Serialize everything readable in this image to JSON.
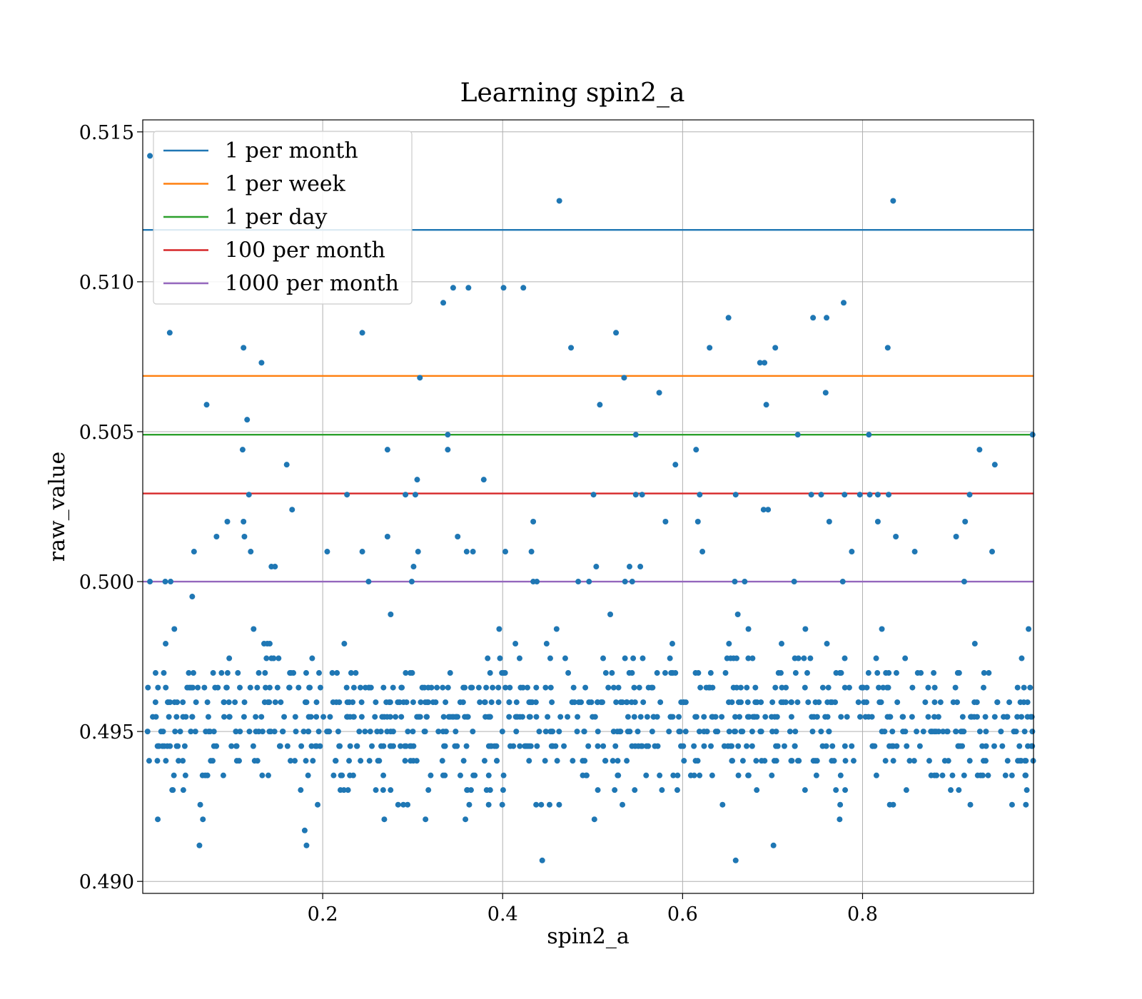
{
  "chart_data": {
    "type": "scatter",
    "title": "Learning spin2_a",
    "xlabel": "spin2_a",
    "ylabel": "raw_value",
    "xlim": [
      0.0,
      0.99
    ],
    "ylim": [
      0.4896,
      0.5154
    ],
    "x_ticks": [
      0.2,
      0.4,
      0.6,
      0.8
    ],
    "x_tick_labels": [
      "0.2",
      "0.4",
      "0.6",
      "0.8"
    ],
    "y_ticks": [
      0.49,
      0.495,
      0.5,
      0.505,
      0.51,
      0.515
    ],
    "y_tick_labels": [
      "0.490",
      "0.495",
      "0.500",
      "0.505",
      "0.510",
      "0.515"
    ],
    "grid": true,
    "legend_position": "top-left",
    "scatter_color": "#1f77b4",
    "reference_lines": [
      {
        "name": "1 per month",
        "y": 0.51173,
        "color": "#1f77b4"
      },
      {
        "name": "1 per week",
        "y": 0.50686,
        "color": "#ff7f0e"
      },
      {
        "name": "1 per day",
        "y": 0.5049,
        "color": "#2ca02c"
      },
      {
        "name": "100 per month",
        "y": 0.50294,
        "color": "#d62728"
      },
      {
        "name": "1000 per month",
        "y": 0.5,
        "color": "#9467bd"
      }
    ],
    "scatter_points": [
      [
        0.008,
        0.5142
      ],
      [
        0.03,
        0.5083
      ],
      [
        0.112,
        0.5078
      ],
      [
        0.132,
        0.5073
      ],
      [
        0.071,
        0.5059
      ],
      [
        0.116,
        0.5054
      ],
      [
        0.111,
        0.5044
      ],
      [
        0.16,
        0.5039
      ],
      [
        0.166,
        0.5024
      ],
      [
        0.082,
        0.5015
      ],
      [
        0.094,
        0.502
      ],
      [
        0.112,
        0.502
      ],
      [
        0.113,
        0.5015
      ],
      [
        0.118,
        0.5029
      ],
      [
        0.12,
        0.501
      ],
      [
        0.143,
        0.5005
      ],
      [
        0.147,
        0.5005
      ],
      [
        0.057,
        0.501
      ],
      [
        0.055,
        0.4995
      ],
      [
        0.008,
        0.5
      ],
      [
        0.025,
        0.5
      ],
      [
        0.031,
        0.5
      ],
      [
        0.244,
        0.5083
      ],
      [
        0.272,
        0.5044
      ],
      [
        0.227,
        0.5029
      ],
      [
        0.244,
        0.501
      ],
      [
        0.272,
        0.5015
      ],
      [
        0.251,
        0.5
      ],
      [
        0.205,
        0.501
      ],
      [
        0.292,
        0.5029
      ],
      [
        0.303,
        0.5029
      ],
      [
        0.305,
        0.5034
      ],
      [
        0.306,
        0.501
      ],
      [
        0.301,
        0.5005
      ],
      [
        0.299,
        0.5
      ],
      [
        0.308,
        0.5068
      ],
      [
        0.334,
        0.5093
      ],
      [
        0.345,
        0.5098
      ],
      [
        0.362,
        0.5098
      ],
      [
        0.401,
        0.5098
      ],
      [
        0.423,
        0.5098
      ],
      [
        0.339,
        0.5049
      ],
      [
        0.339,
        0.5044
      ],
      [
        0.379,
        0.5034
      ],
      [
        0.35,
        0.5015
      ],
      [
        0.36,
        0.501
      ],
      [
        0.367,
        0.501
      ],
      [
        0.403,
        0.501
      ],
      [
        0.432,
        0.501
      ],
      [
        0.434,
        0.502
      ],
      [
        0.434,
        0.5
      ],
      [
        0.438,
        0.5
      ],
      [
        0.463,
        0.5127
      ],
      [
        0.476,
        0.5078
      ],
      [
        0.526,
        0.5083
      ],
      [
        0.535,
        0.5068
      ],
      [
        0.508,
        0.5059
      ],
      [
        0.548,
        0.5049
      ],
      [
        0.501,
        0.5029
      ],
      [
        0.548,
        0.5029
      ],
      [
        0.555,
        0.5029
      ],
      [
        0.504,
        0.5005
      ],
      [
        0.541,
        0.5005
      ],
      [
        0.553,
        0.5005
      ],
      [
        0.484,
        0.5
      ],
      [
        0.496,
        0.5
      ],
      [
        0.536,
        0.5
      ],
      [
        0.544,
        0.5
      ],
      [
        0.574,
        0.5063
      ],
      [
        0.592,
        0.5039
      ],
      [
        0.581,
        0.502
      ],
      [
        0.615,
        0.5044
      ],
      [
        0.619,
        0.5029
      ],
      [
        0.617,
        0.502
      ],
      [
        0.622,
        0.501
      ],
      [
        0.63,
        0.5078
      ],
      [
        0.651,
        0.5088
      ],
      [
        0.659,
        0.5029
      ],
      [
        0.658,
        0.5
      ],
      [
        0.669,
        0.5
      ],
      [
        0.686,
        0.5073
      ],
      [
        0.691,
        0.5073
      ],
      [
        0.693,
        0.5059
      ],
      [
        0.703,
        0.5078
      ],
      [
        0.69,
        0.5024
      ],
      [
        0.695,
        0.5024
      ],
      [
        0.728,
        0.5049
      ],
      [
        0.724,
        0.5
      ],
      [
        0.745,
        0.5088
      ],
      [
        0.76,
        0.5088
      ],
      [
        0.779,
        0.5093
      ],
      [
        0.759,
        0.5063
      ],
      [
        0.743,
        0.5029
      ],
      [
        0.754,
        0.5029
      ],
      [
        0.763,
        0.502
      ],
      [
        0.788,
        0.501
      ],
      [
        0.78,
        0.5029
      ],
      [
        0.797,
        0.5029
      ],
      [
        0.808,
        0.5029
      ],
      [
        0.817,
        0.5029
      ],
      [
        0.829,
        0.5029
      ],
      [
        0.778,
        0.5
      ],
      [
        0.807,
        0.5049
      ],
      [
        0.817,
        0.502
      ],
      [
        0.828,
        0.5078
      ],
      [
        0.834,
        0.5127
      ],
      [
        0.837,
        0.5015
      ],
      [
        0.858,
        0.501
      ],
      [
        0.904,
        0.5015
      ],
      [
        0.914,
        0.502
      ],
      [
        0.919,
        0.5029
      ],
      [
        0.913,
        0.5
      ],
      [
        0.93,
        0.5044
      ],
      [
        0.947,
        0.5039
      ],
      [
        0.944,
        0.501
      ],
      [
        0.989,
        0.5049
      ],
      [
        0.063,
        0.4912
      ],
      [
        0.18,
        0.4917
      ],
      [
        0.182,
        0.4912
      ],
      [
        0.444,
        0.4907
      ],
      [
        0.659,
        0.4907
      ],
      [
        0.701,
        0.4912
      ]
    ],
    "scatter_band": {
      "x_start": 0.005,
      "x_end": 0.99,
      "count": 920,
      "y_center": 0.4953,
      "y_spread": 0.0013,
      "y_min": 0.4921,
      "y_max": 0.4995,
      "y_step": 0.0004883,
      "seed": 20240611
    }
  }
}
